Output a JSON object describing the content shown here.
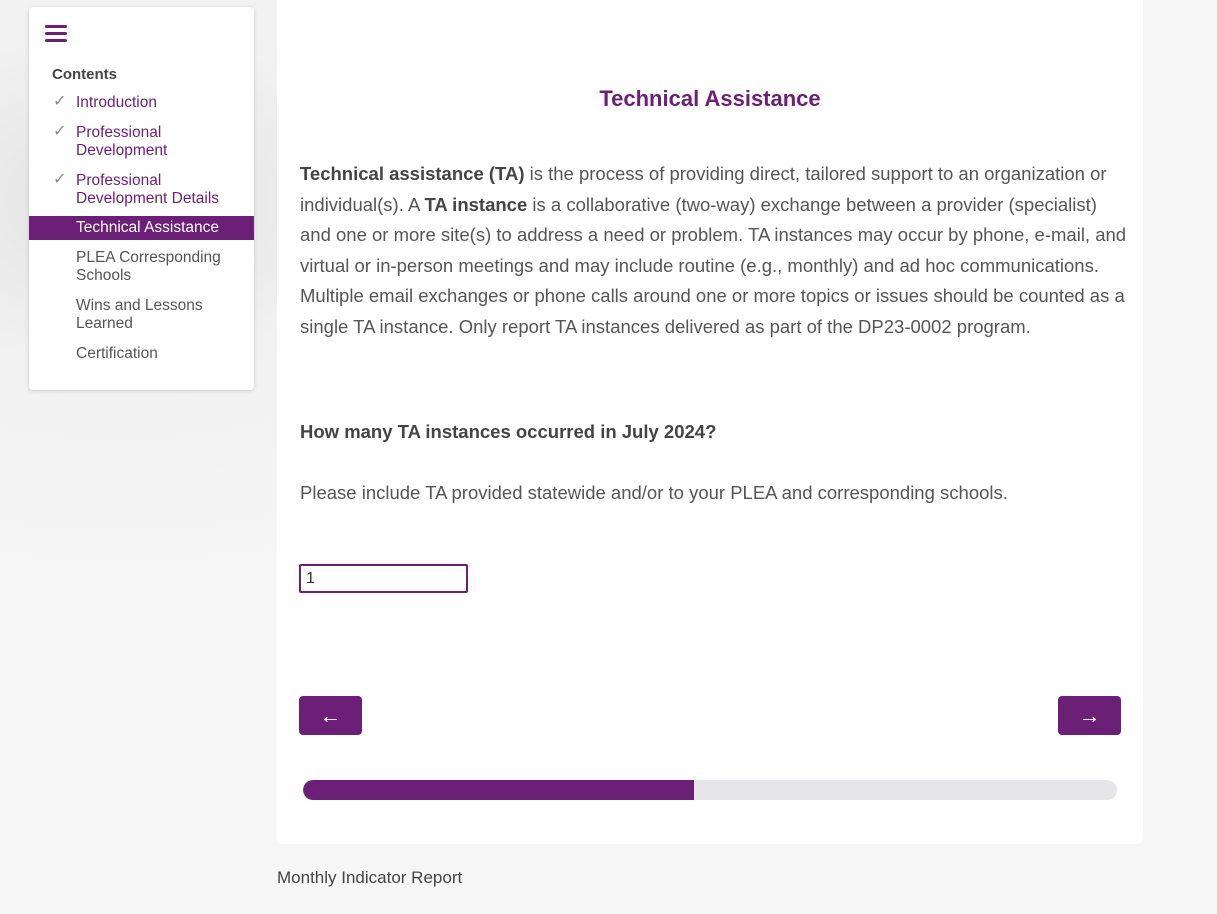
{
  "sidebar": {
    "menu_icon": "hamburger-icon",
    "heading": "Contents",
    "items": [
      {
        "label": "Introduction",
        "status": "complete"
      },
      {
        "label": "Professional Development",
        "status": "complete"
      },
      {
        "label": "Professional Development Details",
        "status": "complete"
      },
      {
        "label": "Technical Assistance",
        "status": "active"
      },
      {
        "label": "PLEA Corresponding Schools",
        "status": "pending"
      },
      {
        "label": "Wins and Lessons Learned",
        "status": "pending"
      },
      {
        "label": "Certification",
        "status": "pending"
      }
    ]
  },
  "main": {
    "title": "Technical Assistance",
    "intro": {
      "t1": "Technical assistance (TA)",
      "t2": " is the process of providing direct, tailored support to an organization or individual(s). A ",
      "t3": "TA instance",
      "t4": " is a collaborative (two-way) exchange between a provider (specialist) and one or more site(s) to address a need or problem. TA instances may occur by phone, e-mail, and virtual or in-person meetings and may include routine (e.g., monthly) and ad hoc communications. Multiple email exchanges or phone calls around one or more topics or issues should be counted as a single TA instance. Only report TA instances delivered as part of the DP23-0002 program."
    },
    "question": "How many TA instances occurred in July 2024?",
    "hint": "Please include TA provided statewide and/or to your PLEA and corresponding schools.",
    "answer_value": "1",
    "prev_label": "←",
    "next_label": "→",
    "progress_percent": 48
  },
  "footer": {
    "text": "Monthly Indicator Report"
  },
  "colors": {
    "accent": "#6c1f77",
    "progress_track": "#e6e6e8"
  }
}
